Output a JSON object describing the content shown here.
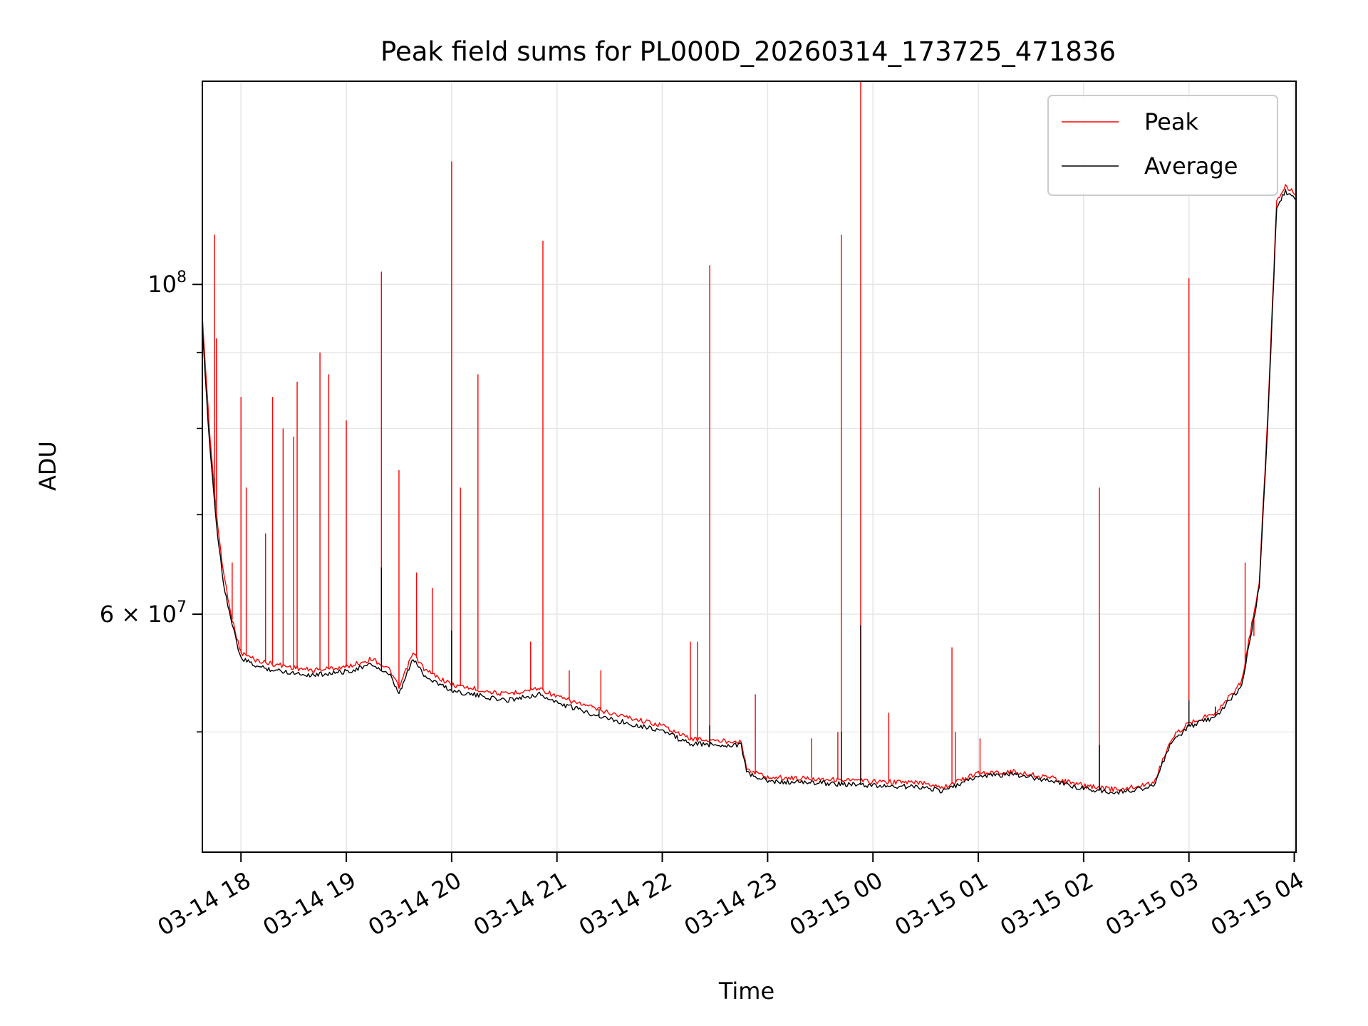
{
  "chart_data": {
    "type": "line",
    "title": "Peak field sums for PL000D_20260314_173725_471836",
    "xlabel": "Time",
    "ylabel": "ADU",
    "x_range": [
      "2026-03-14 17:38",
      "2026-03-15 04:01"
    ],
    "y_scale": "log",
    "y_range": [
      41500000,
      137000000
    ],
    "x_ticks": [
      {
        "t": "2026-03-14 18:00",
        "label": "03-14 18"
      },
      {
        "t": "2026-03-14 19:00",
        "label": "03-14 19"
      },
      {
        "t": "2026-03-14 20:00",
        "label": "03-14 20"
      },
      {
        "t": "2026-03-14 21:00",
        "label": "03-14 21"
      },
      {
        "t": "2026-03-14 22:00",
        "label": "03-14 22"
      },
      {
        "t": "2026-03-14 23:00",
        "label": "03-14 23"
      },
      {
        "t": "2026-03-15 00:00",
        "label": "03-15 00"
      },
      {
        "t": "2026-03-15 01:00",
        "label": "03-15 01"
      },
      {
        "t": "2026-03-15 02:00",
        "label": "03-15 02"
      },
      {
        "t": "2026-03-15 03:00",
        "label": "03-15 03"
      },
      {
        "t": "2026-03-15 04:00",
        "label": "03-15 04"
      }
    ],
    "y_major_ticks": [
      {
        "v": 60000000,
        "base": "6 × 10",
        "exp": "7"
      },
      {
        "v": 100000000,
        "base": "10",
        "exp": "8"
      }
    ],
    "y_minor_ticks": [
      50000000,
      70000000,
      80000000,
      90000000
    ],
    "grid": true,
    "legend_position": "top-right",
    "series": [
      {
        "name": "Peak",
        "color": "#ff0000",
        "points": [
          [
            "2026-03-14 17:38",
            95000000
          ],
          [
            "2026-03-14 17:42",
            80000000
          ],
          [
            "2026-03-14 17:46",
            70000000
          ],
          [
            "2026-03-14 17:50",
            64000000
          ],
          [
            "2026-03-14 17:55",
            59500000
          ],
          [
            "2026-03-14 18:00",
            56500000
          ],
          [
            "2026-03-14 18:10",
            55800000
          ],
          [
            "2026-03-14 18:20",
            55500000
          ],
          [
            "2026-03-14 18:40",
            55000000
          ],
          [
            "2026-03-14 19:00",
            55300000
          ],
          [
            "2026-03-14 19:15",
            56000000
          ],
          [
            "2026-03-14 19:25",
            55000000
          ],
          [
            "2026-03-14 19:30",
            53500000
          ],
          [
            "2026-03-14 19:38",
            56500000
          ],
          [
            "2026-03-14 19:45",
            55000000
          ],
          [
            "2026-03-14 20:00",
            53800000
          ],
          [
            "2026-03-14 20:30",
            53000000
          ],
          [
            "2026-03-14 20:50",
            53500000
          ],
          [
            "2026-03-14 21:00",
            52800000
          ],
          [
            "2026-03-14 21:30",
            51500000
          ],
          [
            "2026-03-14 22:00",
            50500000
          ],
          [
            "2026-03-14 22:15",
            49500000
          ],
          [
            "2026-03-14 22:30",
            49300000
          ],
          [
            "2026-03-14 22:45",
            49300000
          ],
          [
            "2026-03-14 22:48",
            47200000
          ],
          [
            "2026-03-14 23:00",
            46600000
          ],
          [
            "2026-03-14 23:30",
            46500000
          ],
          [
            "2026-03-15 00:00",
            46300000
          ],
          [
            "2026-03-15 00:30",
            46200000
          ],
          [
            "2026-03-15 00:40",
            45900000
          ],
          [
            "2026-03-15 01:00",
            46900000
          ],
          [
            "2026-03-15 01:20",
            47000000
          ],
          [
            "2026-03-15 01:40",
            46600000
          ],
          [
            "2026-03-15 02:00",
            46000000
          ],
          [
            "2026-03-15 02:20",
            45700000
          ],
          [
            "2026-03-15 02:40",
            46200000
          ],
          [
            "2026-03-15 02:50",
            49500000
          ],
          [
            "2026-03-15 03:00",
            50700000
          ],
          [
            "2026-03-15 03:15",
            51500000
          ],
          [
            "2026-03-15 03:30",
            54000000
          ],
          [
            "2026-03-15 03:40",
            63000000
          ],
          [
            "2026-03-15 03:45",
            82000000
          ],
          [
            "2026-03-15 03:50",
            114000000
          ],
          [
            "2026-03-15 03:55",
            116500000
          ],
          [
            "2026-03-15 04:01",
            115000000
          ]
        ],
        "spikes": [
          [
            "2026-03-14 17:45",
            108000000
          ],
          [
            "2026-03-14 17:46",
            92000000
          ],
          [
            "2026-03-14 17:55",
            65000000
          ],
          [
            "2026-03-14 18:00",
            84000000
          ],
          [
            "2026-03-14 18:03",
            73000000
          ],
          [
            "2026-03-14 18:14",
            68000000
          ],
          [
            "2026-03-14 18:18",
            84000000
          ],
          [
            "2026-03-14 18:24",
            80000000
          ],
          [
            "2026-03-14 18:30",
            79000000
          ],
          [
            "2026-03-14 18:32",
            86000000
          ],
          [
            "2026-03-14 18:45",
            90000000
          ],
          [
            "2026-03-14 18:50",
            87000000
          ],
          [
            "2026-03-14 19:00",
            81000000
          ],
          [
            "2026-03-14 19:20",
            102000000
          ],
          [
            "2026-03-14 19:30",
            75000000
          ],
          [
            "2026-03-14 19:40",
            64000000
          ],
          [
            "2026-03-14 19:49",
            62500000
          ],
          [
            "2026-03-14 20:00",
            121000000
          ],
          [
            "2026-03-14 20:05",
            73000000
          ],
          [
            "2026-03-14 20:15",
            87000000
          ],
          [
            "2026-03-14 20:45",
            57500000
          ],
          [
            "2026-03-14 20:52",
            107000000
          ],
          [
            "2026-03-14 21:07",
            55000000
          ],
          [
            "2026-03-14 21:20",
            52000000
          ],
          [
            "2026-03-14 21:25",
            55000000
          ],
          [
            "2026-03-14 22:16",
            57500000
          ],
          [
            "2026-03-14 22:20",
            57500000
          ],
          [
            "2026-03-14 22:27",
            103000000
          ],
          [
            "2026-03-14 22:53",
            53000000
          ],
          [
            "2026-03-14 23:25",
            49500000
          ],
          [
            "2026-03-14 23:40",
            50000000
          ],
          [
            "2026-03-14 23:42",
            108000000
          ],
          [
            "2026-03-14 23:53",
            137000000
          ],
          [
            "2026-03-15 00:09",
            51500000
          ],
          [
            "2026-03-15 00:45",
            57000000
          ],
          [
            "2026-03-15 00:47",
            50000000
          ],
          [
            "2026-03-15 01:01",
            49500000
          ],
          [
            "2026-03-15 02:09",
            73000000
          ],
          [
            "2026-03-15 03:00",
            101000000
          ],
          [
            "2026-03-15 03:32",
            65000000
          ],
          [
            "2026-03-15 03:37",
            58000000
          ]
        ]
      },
      {
        "name": "Average",
        "color": "#000000",
        "points": [
          [
            "2026-03-14 17:38",
            93000000
          ],
          [
            "2026-03-14 17:42",
            78500000
          ],
          [
            "2026-03-14 17:46",
            69000000
          ],
          [
            "2026-03-14 17:50",
            63000000
          ],
          [
            "2026-03-14 17:55",
            59000000
          ],
          [
            "2026-03-14 18:00",
            56000000
          ],
          [
            "2026-03-14 18:10",
            55300000
          ],
          [
            "2026-03-14 18:20",
            55000000
          ],
          [
            "2026-03-14 18:40",
            54600000
          ],
          [
            "2026-03-14 19:00",
            54900000
          ],
          [
            "2026-03-14 19:15",
            55500000
          ],
          [
            "2026-03-14 19:25",
            54500000
          ],
          [
            "2026-03-14 19:30",
            53000000
          ],
          [
            "2026-03-14 19:38",
            56000000
          ],
          [
            "2026-03-14 19:45",
            54500000
          ],
          [
            "2026-03-14 20:00",
            53300000
          ],
          [
            "2026-03-14 20:30",
            52500000
          ],
          [
            "2026-03-14 20:50",
            53000000
          ],
          [
            "2026-03-14 21:00",
            52300000
          ],
          [
            "2026-03-14 21:30",
            51000000
          ],
          [
            "2026-03-14 22:00",
            50100000
          ],
          [
            "2026-03-14 22:15",
            49100000
          ],
          [
            "2026-03-14 22:30",
            49000000
          ],
          [
            "2026-03-14 22:45",
            49000000
          ],
          [
            "2026-03-14 22:48",
            46900000
          ],
          [
            "2026-03-14 23:00",
            46300000
          ],
          [
            "2026-03-14 23:30",
            46200000
          ],
          [
            "2026-03-15 00:00",
            46000000
          ],
          [
            "2026-03-15 00:30",
            45900000
          ],
          [
            "2026-03-15 00:40",
            45600000
          ],
          [
            "2026-03-15 01:00",
            46700000
          ],
          [
            "2026-03-15 01:20",
            46800000
          ],
          [
            "2026-03-15 01:40",
            46400000
          ],
          [
            "2026-03-15 02:00",
            45800000
          ],
          [
            "2026-03-15 02:20",
            45500000
          ],
          [
            "2026-03-15 02:40",
            46000000
          ],
          [
            "2026-03-15 02:50",
            49200000
          ],
          [
            "2026-03-15 03:00",
            50400000
          ],
          [
            "2026-03-15 03:15",
            51200000
          ],
          [
            "2026-03-15 03:30",
            53600000
          ],
          [
            "2026-03-15 03:40",
            62500000
          ],
          [
            "2026-03-15 03:45",
            81000000
          ],
          [
            "2026-03-15 03:50",
            113000000
          ],
          [
            "2026-03-15 03:55",
            115500000
          ],
          [
            "2026-03-15 04:01",
            114000000
          ]
        ],
        "spikes": [
          [
            "2026-03-14 19:20",
            64500000
          ],
          [
            "2026-03-14 20:00",
            58500000
          ],
          [
            "2026-03-14 21:24",
            51800000
          ],
          [
            "2026-03-14 22:27",
            50500000
          ],
          [
            "2026-03-14 23:42",
            50000000
          ],
          [
            "2026-03-14 23:53",
            59000000
          ],
          [
            "2026-03-15 02:09",
            49000000
          ],
          [
            "2026-03-15 03:00",
            52500000
          ],
          [
            "2026-03-15 03:15",
            52000000
          ]
        ]
      }
    ]
  }
}
